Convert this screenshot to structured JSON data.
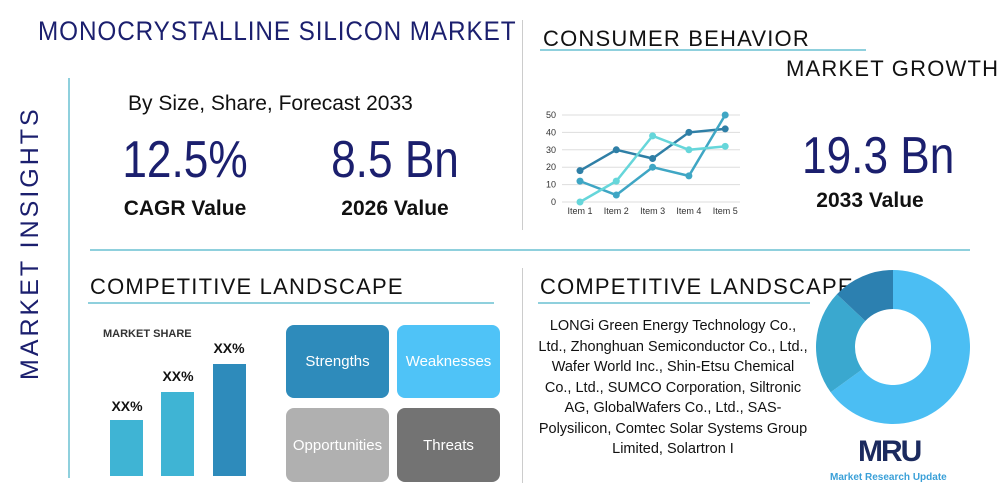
{
  "header": {
    "title": "MONOCRYSTALLINE SILICON MARKET",
    "subtitle": "By Size, Share, Forecast 2033",
    "side_label": "MARKET INSIGHTS"
  },
  "stats": {
    "cagr_value": "12.5%",
    "cagr_label": "CAGR Value",
    "y2026_value": "8.5 Bn",
    "y2026_label": "2026 Value",
    "y2033_value": "19.3 Bn",
    "y2033_label": "2033 Value"
  },
  "consumer": {
    "title": "CONSUMER BEHAVIOR",
    "subtitle": "MARKET GROWTH"
  },
  "chart_data": {
    "type": "line",
    "categories": [
      "Item 1",
      "Item 2",
      "Item 3",
      "Item 4",
      "Item 5"
    ],
    "ylim": [
      0,
      50
    ],
    "yticks": [
      "0",
      "10",
      "20",
      "30",
      "40",
      "50"
    ],
    "grid": true,
    "series": [
      {
        "values": [
          18,
          30,
          25,
          40,
          42
        ],
        "color": "#2f7fa6"
      },
      {
        "values": [
          12,
          4,
          20,
          15,
          50
        ],
        "color": "#3fa6c4"
      },
      {
        "values": [
          0,
          12,
          38,
          30,
          32
        ],
        "color": "#66d6da"
      }
    ]
  },
  "competitive_left": {
    "title": "COMPETITIVE LANDSCAPE",
    "market_share_label": "MARKET SHARE",
    "bars": [
      {
        "label": "XX%",
        "color": "#3fb4d4"
      },
      {
        "label": "XX%",
        "color": "#3fb4d4"
      },
      {
        "label": "XX%",
        "color": "#2e8bbb"
      }
    ],
    "swot": [
      {
        "label": "Strengths",
        "color": "#2e8bbb"
      },
      {
        "label": "Weaknesses",
        "color": "#4fc3f7"
      },
      {
        "label": "Opportunities",
        "color": "#b0b0b0"
      },
      {
        "label": "Threats",
        "color": "#737373"
      }
    ]
  },
  "competitive_right": {
    "title": "COMPETITIVE LANDSCAPE",
    "companies": "LONGi Green Energy Technology Co., Ltd., Zhonghuan Semiconductor Co., Ltd., Wafer World Inc., Shin-Etsu Chemical Co., Ltd., SUMCO Corporation, Siltronic AG, GlobalWafers Co., Ltd., SAS-Polysilicon, Comtec Solar Systems Group Limited, Solartron I"
  },
  "donut": {
    "slices": [
      {
        "value": 65,
        "color": "#4bbef3"
      },
      {
        "value": 22,
        "color": "#3aa8cf"
      },
      {
        "value": 13,
        "color": "#2c80b0"
      }
    ]
  },
  "logo": {
    "mark": "MRU",
    "name": "Market Research Update"
  }
}
